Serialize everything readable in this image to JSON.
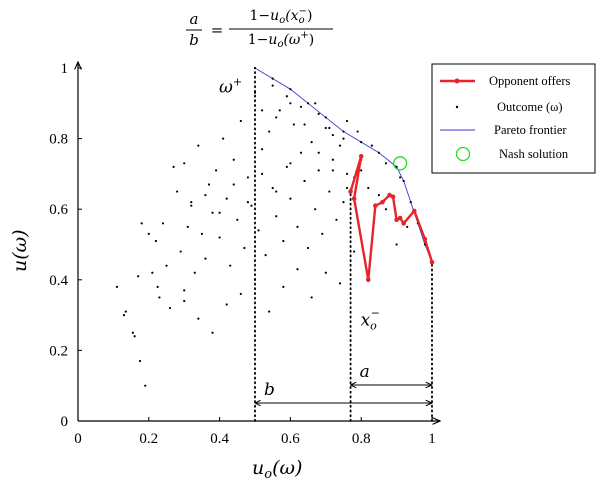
{
  "chart_data": {
    "type": "scatter",
    "formula": {
      "lhs_num": "a",
      "lhs_den": "b",
      "eq": "=",
      "num_prefix": "1−",
      "num_u": "u",
      "num_sub": "o",
      "num_arg": "(x",
      "num_arg_sub": "o",
      "num_arg_sup": "−",
      "num_close": ")",
      "den_prefix": "1−",
      "den_u": "u",
      "den_sub": "o",
      "den_arg": "(ω",
      "den_arg_sup": "+",
      "den_close": ")"
    },
    "xlabel": {
      "main": "u",
      "sub": "o",
      "arg": "(ω)"
    },
    "ylabel": {
      "main": "u",
      "arg": "(ω)"
    },
    "xlim": [
      0,
      1
    ],
    "ylim": [
      0,
      1
    ],
    "xticks": [
      {
        "v": 0,
        "label": "0"
      },
      {
        "v": 0.2,
        "label": "0.2"
      },
      {
        "v": 0.4,
        "label": "0.4"
      },
      {
        "v": 0.6,
        "label": "0.6"
      },
      {
        "v": 0.8,
        "label": "0.8"
      },
      {
        "v": 1,
        "label": "1"
      }
    ],
    "yticks": [
      {
        "v": 0,
        "label": "0"
      },
      {
        "v": 0.2,
        "label": "0.2"
      },
      {
        "v": 0.4,
        "label": "0.4"
      },
      {
        "v": 0.6,
        "label": "0.6"
      },
      {
        "v": 0.8,
        "label": "0.8"
      },
      {
        "v": 1,
        "label": "1"
      }
    ],
    "legend": {
      "position": "top-right",
      "entries": [
        {
          "key": "opponent",
          "label": "Opponent offers"
        },
        {
          "key": "outcome",
          "label": "Outcome (ω)"
        },
        {
          "key": "pareto",
          "label": "Pareto frontier"
        },
        {
          "key": "nash",
          "label": "Nash solution"
        }
      ]
    },
    "colors": {
      "opponent": "#e8242b",
      "pareto": "#3a3ad8",
      "nash": "#22dd22",
      "outcome": "#000000"
    },
    "series": [
      {
        "name": "Opponent offers",
        "x": [
          0.77,
          0.8,
          0.78,
          0.82,
          0.84,
          0.86,
          0.88,
          0.89,
          0.9,
          0.91,
          0.92,
          0.95,
          0.98,
          1.0
        ],
        "y": [
          0.65,
          0.75,
          0.63,
          0.4,
          0.61,
          0.62,
          0.64,
          0.635,
          0.57,
          0.575,
          0.56,
          0.595,
          0.515,
          0.45
        ]
      },
      {
        "name": "Pareto frontier",
        "x": [
          0.5,
          0.55,
          0.6,
          0.65,
          0.7,
          0.75,
          0.8,
          0.85,
          0.9,
          0.92,
          0.94,
          0.96,
          0.98,
          1.0
        ],
        "y": [
          1.0,
          0.97,
          0.94,
          0.9,
          0.86,
          0.82,
          0.79,
          0.76,
          0.72,
          0.68,
          0.62,
          0.56,
          0.5,
          0.45
        ]
      },
      {
        "name": "Outcome (ω)",
        "x": [
          0.11,
          0.13,
          0.135,
          0.155,
          0.16,
          0.17,
          0.175,
          0.18,
          0.19,
          0.2,
          0.21,
          0.22,
          0.225,
          0.23,
          0.24,
          0.25,
          0.26,
          0.27,
          0.28,
          0.29,
          0.3,
          0.3,
          0.31,
          0.32,
          0.33,
          0.34,
          0.35,
          0.36,
          0.37,
          0.38,
          0.39,
          0.4,
          0.41,
          0.42,
          0.43,
          0.44,
          0.45,
          0.46,
          0.47,
          0.48,
          0.49,
          0.5,
          0.51,
          0.52,
          0.53,
          0.54,
          0.55,
          0.56,
          0.57,
          0.58,
          0.59,
          0.6,
          0.61,
          0.62,
          0.63,
          0.64,
          0.65,
          0.66,
          0.67,
          0.68,
          0.69,
          0.7,
          0.71,
          0.72,
          0.73,
          0.74,
          0.75,
          0.76,
          0.78,
          0.8,
          0.82,
          0.85,
          0.87,
          0.9,
          0.93,
          0.3,
          0.34,
          0.38,
          0.42,
          0.46,
          0.5,
          0.54,
          0.58,
          0.62,
          0.66,
          0.7,
          0.74,
          0.78,
          0.32,
          0.36,
          0.4,
          0.44,
          0.48,
          0.52,
          0.56,
          0.6,
          0.64,
          0.68,
          0.72,
          0.76,
          0.8,
          0.52,
          0.56,
          0.6,
          0.64,
          0.68,
          0.72,
          0.76,
          0.55,
          0.59,
          0.63,
          0.67,
          0.71,
          0.75,
          0.79,
          0.83,
          0.87,
          0.91
        ],
        "y": [
          0.38,
          0.3,
          0.31,
          0.25,
          0.24,
          0.41,
          0.17,
          0.56,
          0.1,
          0.53,
          0.42,
          0.51,
          0.38,
          0.35,
          0.56,
          0.44,
          0.32,
          0.72,
          0.65,
          0.48,
          0.73,
          0.37,
          0.55,
          0.62,
          0.42,
          0.78,
          0.53,
          0.46,
          0.67,
          0.59,
          0.71,
          0.52,
          0.8,
          0.63,
          0.44,
          0.74,
          0.57,
          0.85,
          0.49,
          0.69,
          0.61,
          0.93,
          0.54,
          0.77,
          0.47,
          0.82,
          0.66,
          0.58,
          0.88,
          0.51,
          0.72,
          0.63,
          0.84,
          0.55,
          0.76,
          0.68,
          0.49,
          0.79,
          0.6,
          0.71,
          0.53,
          0.83,
          0.65,
          0.74,
          0.57,
          0.78,
          0.62,
          0.7,
          0.69,
          0.71,
          0.66,
          0.64,
          0.6,
          0.5,
          0.55,
          0.34,
          0.29,
          0.25,
          0.33,
          0.36,
          0.4,
          0.31,
          0.38,
          0.43,
          0.35,
          0.42,
          0.39,
          0.48,
          0.61,
          0.64,
          0.59,
          0.67,
          0.62,
          0.7,
          0.65,
          0.73,
          0.68,
          0.76,
          0.71,
          0.66,
          0.74,
          0.88,
          0.86,
          0.9,
          0.84,
          0.87,
          0.81,
          0.85,
          0.95,
          0.92,
          0.89,
          0.9,
          0.83,
          0.8,
          0.82,
          0.78,
          0.73,
          0.69
        ]
      }
    ],
    "nash_solution": {
      "x": 0.91,
      "y": 0.73
    },
    "omega_plus": {
      "x": 0.5,
      "label": "ω",
      "sup": "+"
    },
    "x_o_minus": {
      "x": 0.77,
      "label": "x",
      "sub": "o",
      "sup": "−"
    },
    "span_a": {
      "from": 0.77,
      "to": 1.0,
      "label": "a"
    },
    "span_b": {
      "from": 0.5,
      "to": 1.0,
      "label": "b"
    }
  }
}
